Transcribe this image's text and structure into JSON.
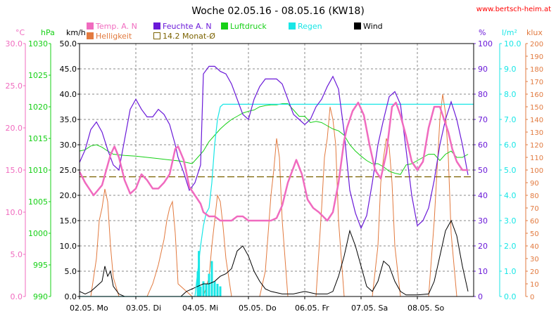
{
  "title": "Woche 02.05.16 - 08.05.16 (KW18)",
  "website": "www.bertsch-heim.at",
  "colors": {
    "temp": "#f06bbf",
    "humidity": "#6a19d8",
    "pressure": "#16d016",
    "rain": "#18e6e6",
    "wind": "#000000",
    "brightness": "#e27a3f",
    "avg": "#7b6200",
    "website": "#ff0000"
  },
  "legend": [
    {
      "key": "temp",
      "label": "Temp. A. N",
      "color": "#f06bbf"
    },
    {
      "key": "humidity",
      "label": "Feuchte A. N",
      "color": "#6a19d8"
    },
    {
      "key": "pressure",
      "label": "Luftdruck",
      "color": "#16d016"
    },
    {
      "key": "rain",
      "label": "Regen",
      "color": "#18e6e6"
    },
    {
      "key": "wind",
      "label": "Wind",
      "color": "#000000"
    },
    {
      "key": "brightness",
      "label": "Helligkeit",
      "color": "#e27a3f"
    },
    {
      "key": "avg",
      "label": "14.2 Monat-Ø",
      "color": "#7b6200",
      "hollow": true
    }
  ],
  "axes": {
    "temp": {
      "unit": "°C",
      "color": "#f06bbf",
      "ticks": [
        "30.0",
        "25.0",
        "20.0",
        "15.0",
        "10.0",
        "5.0",
        "0.0"
      ]
    },
    "pressure": {
      "unit": "hPa",
      "color": "#16d016",
      "ticks": [
        "1030",
        "1025",
        "1020",
        "1015",
        "1010",
        "1005",
        "1000",
        "995",
        "990"
      ]
    },
    "wind": {
      "unit": "km/h",
      "color": "#000000",
      "ticks": [
        "50.0",
        "45.0",
        "40.0",
        "35.0",
        "30.0",
        "25.0",
        "20.0",
        "15.0",
        "10.0",
        "5.0",
        "0.0"
      ]
    },
    "humidity": {
      "unit": "%",
      "color": "#6a19d8",
      "ticks": [
        "100",
        "90",
        "80",
        "70",
        "60",
        "50",
        "40",
        "30",
        "20",
        "10",
        "0"
      ]
    },
    "rain": {
      "unit": "l/m²",
      "color": "#18e6e6",
      "ticks": [
        "10.0",
        "9.0",
        "8.0",
        "7.0",
        "6.0",
        "5.0",
        "4.0",
        "3.0",
        "2.0",
        "1.0",
        "0.0"
      ]
    },
    "brightness": {
      "unit": "klux",
      "color": "#e27a3f",
      "ticks": [
        "200",
        "190",
        "180",
        "170",
        "160",
        "150",
        "140",
        "130",
        "120",
        "110",
        "100",
        "90",
        "80",
        "70",
        "60",
        "50",
        "40",
        "30",
        "20",
        "10",
        "0"
      ]
    }
  },
  "x_labels": [
    "02.05.  Mo",
    "03.05.  Di",
    "04.05.  Mi",
    "05.05.  Do",
    "06.05.  Fr",
    "07.05.  Sa",
    "08.05.  So"
  ],
  "chart_data": {
    "type": "line",
    "title": "Woche 02.05.16 - 08.05.16 (KW18)",
    "x_unit": "day",
    "categories": [
      "02.05. Mo",
      "03.05. Di",
      "04.05. Mi",
      "05.05. Do",
      "06.05. Fr",
      "07.05. Sa",
      "08.05. So"
    ],
    "xlim": [
      0,
      7
    ],
    "series": [
      {
        "key": "temp",
        "name": "Temp. A. N",
        "unit": "°C",
        "ylim": [
          0,
          30
        ],
        "x": [
          0,
          0.1,
          0.25,
          0.4,
          0.55,
          0.62,
          0.7,
          0.8,
          0.9,
          1.0,
          1.1,
          1.2,
          1.3,
          1.4,
          1.5,
          1.6,
          1.7,
          1.75,
          1.85,
          1.95,
          2.05,
          2.15,
          2.2,
          2.3,
          2.4,
          2.5,
          2.6,
          2.7,
          2.8,
          2.9,
          3.0,
          3.2,
          3.4,
          3.5,
          3.6,
          3.7,
          3.8,
          3.85,
          3.95,
          4.05,
          4.15,
          4.25,
          4.4,
          4.5,
          4.6,
          4.7,
          4.75,
          4.85,
          4.95,
          5.05,
          5.15,
          5.25,
          5.35,
          5.45,
          5.55,
          5.62,
          5.7,
          5.8,
          5.9,
          6.0,
          6.1,
          6.2,
          6.3,
          6.4,
          6.55,
          6.62,
          6.7,
          6.8,
          6.9
        ],
        "values": [
          14.8,
          13.5,
          12.0,
          13.2,
          16.8,
          17.8,
          16.5,
          13.8,
          12.2,
          12.8,
          14.5,
          13.8,
          12.8,
          12.8,
          13.5,
          14.5,
          17.5,
          17.8,
          16.2,
          13.0,
          12.0,
          11.0,
          10.0,
          9.5,
          9.5,
          9.0,
          9.0,
          9.0,
          9.5,
          9.5,
          9.0,
          9.0,
          9.0,
          9.3,
          10.8,
          13.5,
          15.3,
          16.2,
          14.5,
          11.5,
          10.5,
          10.0,
          9.0,
          10.0,
          13.5,
          18.5,
          20.0,
          22.0,
          23.0,
          21.5,
          18.0,
          15.0,
          14.0,
          17.0,
          22.5,
          23.0,
          21.5,
          19.0,
          16.0,
          15.0,
          16.0,
          20.0,
          22.5,
          22.5,
          19.5,
          17.5,
          16.0,
          15.0,
          15.0
        ]
      },
      {
        "key": "humidity",
        "name": "Feuchte A. N",
        "unit": "%",
        "ylim": [
          0,
          100
        ],
        "x": [
          0,
          0.1,
          0.2,
          0.3,
          0.4,
          0.5,
          0.6,
          0.7,
          0.8,
          0.9,
          1.0,
          1.1,
          1.2,
          1.3,
          1.4,
          1.5,
          1.6,
          1.7,
          1.75,
          1.85,
          1.95,
          2.05,
          2.15,
          2.2,
          2.3,
          2.4,
          2.5,
          2.6,
          2.7,
          2.8,
          2.9,
          3.0,
          3.1,
          3.2,
          3.3,
          3.4,
          3.5,
          3.6,
          3.7,
          3.8,
          3.9,
          4.0,
          4.1,
          4.2,
          4.3,
          4.4,
          4.5,
          4.6,
          4.7,
          4.8,
          4.9,
          5.0,
          5.1,
          5.2,
          5.3,
          5.4,
          5.5,
          5.6,
          5.7,
          5.8,
          5.9,
          6.0,
          6.1,
          6.2,
          6.3,
          6.4,
          6.5,
          6.6,
          6.7,
          6.8,
          6.9
        ],
        "values": [
          53,
          58,
          66,
          69,
          65,
          58,
          52,
          50,
          62,
          74,
          78,
          74,
          71,
          71,
          74,
          72,
          68,
          60,
          55,
          49,
          42,
          45,
          52,
          88,
          91,
          91,
          89,
          88,
          84,
          78,
          72,
          70,
          78,
          83,
          86,
          86,
          86,
          84,
          78,
          72,
          70,
          68,
          70,
          75,
          78,
          83,
          87,
          82,
          65,
          42,
          33,
          27,
          32,
          45,
          60,
          70,
          79,
          81,
          76,
          58,
          40,
          28,
          30,
          35,
          46,
          60,
          70,
          77,
          70,
          60,
          48
        ]
      },
      {
        "key": "pressure",
        "name": "Luftdruck",
        "unit": "hPa",
        "ylim": [
          990,
          1030
        ],
        "x": [
          0,
          0.1,
          0.2,
          0.3,
          0.4,
          0.5,
          0.6,
          0.8,
          1.0,
          1.2,
          1.4,
          1.6,
          1.8,
          1.9,
          2.0,
          2.1,
          2.2,
          2.3,
          2.4,
          2.5,
          2.6,
          2.7,
          2.8,
          2.9,
          3.0,
          3.1,
          3.2,
          3.3,
          3.4,
          3.5,
          3.6,
          3.7,
          3.8,
          3.9,
          4.0,
          4.1,
          4.2,
          4.3,
          4.4,
          4.5,
          4.6,
          4.7,
          4.8,
          4.9,
          5.0,
          5.1,
          5.2,
          5.3,
          5.4,
          5.5,
          5.6,
          5.7,
          5.8,
          5.9,
          6.0,
          6.1,
          6.2,
          6.3,
          6.4,
          6.5,
          6.6,
          6.7,
          6.8,
          6.9
        ],
        "values": [
          1013,
          1013.2,
          1013.8,
          1014,
          1013.6,
          1013,
          1012.5,
          1012.3,
          1012.2,
          1012,
          1011.8,
          1011.6,
          1011.4,
          1011.2,
          1011,
          1012,
          1013,
          1014.5,
          1015.5,
          1016.5,
          1017.3,
          1018,
          1018.5,
          1019,
          1019.3,
          1019.5,
          1020,
          1020.2,
          1020.3,
          1020.3,
          1020.5,
          1020.5,
          1019.5,
          1018.5,
          1018.5,
          1017.5,
          1017.7,
          1017.5,
          1017,
          1016.5,
          1016.2,
          1015.5,
          1014,
          1013,
          1012.2,
          1011.5,
          1011,
          1011,
          1010.5,
          1009.8,
          1009.5,
          1009.3,
          1010.8,
          1011,
          1011.5,
          1012,
          1012.5,
          1012.5,
          1011.5,
          1012.5,
          1013,
          1012,
          1012,
          1012.5
        ]
      },
      {
        "key": "wind",
        "name": "Wind",
        "unit": "km/h",
        "ylim": [
          0,
          50
        ],
        "x": [
          0,
          0.1,
          0.2,
          0.3,
          0.4,
          0.45,
          0.5,
          0.55,
          0.6,
          0.7,
          0.8,
          1.0,
          1.2,
          1.4,
          1.6,
          1.8,
          1.9,
          2.0,
          2.1,
          2.2,
          2.3,
          2.4,
          2.5,
          2.6,
          2.7,
          2.8,
          2.9,
          3.0,
          3.1,
          3.2,
          3.3,
          3.4,
          3.6,
          3.8,
          4.0,
          4.2,
          4.4,
          4.5,
          4.6,
          4.7,
          4.8,
          4.9,
          5.0,
          5.1,
          5.2,
          5.3,
          5.4,
          5.5,
          5.6,
          5.7,
          5.8,
          6.0,
          6.2,
          6.3,
          6.4,
          6.5,
          6.6,
          6.7,
          6.8,
          6.9
        ],
        "values": [
          1,
          0.5,
          1,
          2,
          3,
          6,
          4,
          5,
          2,
          0.5,
          0,
          0,
          0,
          0,
          0,
          0,
          1,
          1.5,
          2,
          2.5,
          2.5,
          3,
          4,
          4.5,
          5.5,
          9,
          10,
          8,
          5,
          3,
          1.5,
          1,
          0.5,
          0.5,
          1,
          0.5,
          0.5,
          1,
          4,
          8,
          13,
          10,
          6,
          2,
          1,
          3,
          7,
          6,
          3,
          1,
          0.3,
          0.3,
          0.5,
          3,
          8,
          13,
          15,
          12,
          6,
          1
        ]
      },
      {
        "key": "brightness",
        "name": "Helligkeit",
        "unit": "klux",
        "ylim": [
          0,
          200
        ],
        "x": [
          0,
          0.2,
          0.3,
          0.35,
          0.4,
          0.45,
          0.5,
          0.55,
          0.6,
          0.7,
          1.0,
          1.2,
          1.3,
          1.4,
          1.5,
          1.55,
          1.6,
          1.65,
          1.7,
          1.75,
          2.0,
          2.2,
          2.3,
          2.35,
          2.4,
          2.45,
          2.5,
          2.55,
          2.6,
          2.7,
          3.0,
          3.2,
          3.3,
          3.35,
          3.4,
          3.45,
          3.5,
          3.55,
          3.6,
          3.7,
          4.0,
          4.2,
          4.3,
          4.35,
          4.4,
          4.45,
          4.5,
          4.55,
          4.6,
          4.7,
          5.0,
          5.2,
          5.3,
          5.35,
          5.4,
          5.45,
          5.5,
          5.55,
          5.6,
          5.7,
          6.0,
          6.2,
          6.3,
          6.35,
          6.4,
          6.45,
          6.5,
          6.55,
          6.6,
          6.7
        ],
        "values": [
          0,
          0,
          30,
          60,
          70,
          85,
          75,
          40,
          15,
          0,
          0,
          0,
          10,
          25,
          45,
          60,
          70,
          75,
          50,
          10,
          0,
          0,
          15,
          40,
          60,
          80,
          75,
          55,
          30,
          0,
          0,
          0,
          20,
          50,
          80,
          100,
          125,
          110,
          60,
          0,
          0,
          0,
          70,
          110,
          125,
          150,
          140,
          120,
          60,
          0,
          0,
          0,
          40,
          90,
          110,
          125,
          118,
          90,
          40,
          0,
          0,
          0,
          60,
          100,
          140,
          160,
          145,
          110,
          50,
          0
        ]
      },
      {
        "key": "rain",
        "name": "Regen",
        "unit": "l/m²",
        "ylim": [
          0,
          10
        ],
        "x": [
          0,
          2.05,
          2.1,
          2.15,
          2.2,
          2.25,
          2.3,
          2.35,
          2.4,
          2.45,
          2.5,
          2.55,
          2.6,
          2.7,
          2.8,
          2.9,
          3.0,
          3.5,
          4.0,
          5.0,
          6.0,
          7.0
        ],
        "values": [
          0,
          0,
          1,
          2,
          2.8,
          3.3,
          3.5,
          4.5,
          6.0,
          7.0,
          7.5,
          7.6,
          7.6,
          7.6,
          7.6,
          7.6,
          7.6,
          7.6,
          7.6,
          7.6,
          7.6,
          7.6
        ],
        "bars_x": [
          2.1,
          2.12,
          2.15,
          2.2,
          2.25,
          2.3,
          2.35,
          2.4,
          2.45,
          2.5
        ],
        "bars_values": [
          1.0,
          1.8,
          0.4,
          0.6,
          0.5,
          0.9,
          1.4,
          0.6,
          0.5,
          0.4
        ]
      },
      {
        "key": "avg",
        "name": "14.2 Monat-Ø",
        "unit": "°C",
        "ylim": [
          0,
          30
        ],
        "x": [
          0,
          7
        ],
        "values": [
          14.2,
          14.2
        ]
      }
    ]
  }
}
